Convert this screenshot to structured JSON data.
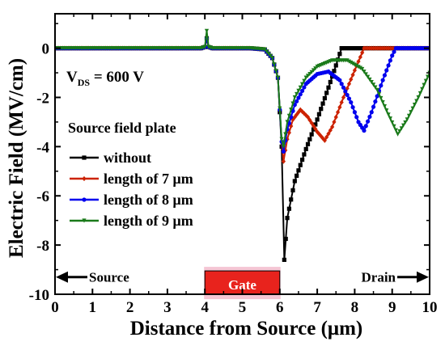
{
  "chart_data": {
    "type": "line",
    "xlabel": "Distance from Source (μm)",
    "ylabel": "Electric Field (MV/cm)",
    "xlim": [
      0,
      10
    ],
    "ylim": [
      -10,
      1.4
    ],
    "x_ticks": [
      0,
      1,
      2,
      3,
      4,
      5,
      6,
      7,
      8,
      9,
      10
    ],
    "y_ticks": [
      0,
      -2,
      -4,
      -6,
      -8,
      -10
    ],
    "grid": false,
    "vds_label_main": "V",
    "vds_label_sub": "DS",
    "vds_label_rest": " = 600 V",
    "legend_title": "Source field plate",
    "legend_placement": "middle-left",
    "annotations": {
      "source": "Source",
      "drain": "Drain",
      "gate": "Gate",
      "gate_range": [
        4,
        6
      ]
    },
    "series": [
      {
        "name": "without",
        "color": "#000000",
        "marker": "square",
        "points": [
          [
            0,
            0
          ],
          [
            3.9,
            0
          ],
          [
            4.0,
            0.05
          ],
          [
            4.05,
            0.4
          ],
          [
            4.1,
            0.05
          ],
          [
            4.2,
            0
          ],
          [
            5.2,
            0
          ],
          [
            5.6,
            -0.05
          ],
          [
            5.8,
            -0.4
          ],
          [
            5.95,
            -1.2
          ],
          [
            6.05,
            -4
          ],
          [
            6.12,
            -8.6
          ],
          [
            6.2,
            -6.9
          ],
          [
            6.4,
            -5.4
          ],
          [
            6.7,
            -4.1
          ],
          [
            7.0,
            -2.9
          ],
          [
            7.3,
            -1.6
          ],
          [
            7.5,
            -0.7
          ],
          [
            7.65,
            0
          ],
          [
            10,
            0
          ]
        ]
      },
      {
        "name": "length of 7 μm",
        "color": "#cc2200",
        "marker": "diamond",
        "points": [
          [
            0,
            0
          ],
          [
            3.9,
            0
          ],
          [
            4.0,
            0.05
          ],
          [
            4.05,
            0.4
          ],
          [
            4.1,
            0.05
          ],
          [
            4.2,
            0
          ],
          [
            5.2,
            0
          ],
          [
            5.6,
            -0.05
          ],
          [
            5.8,
            -0.4
          ],
          [
            5.95,
            -1.2
          ],
          [
            6.05,
            -3.8
          ],
          [
            6.1,
            -4.6
          ],
          [
            6.2,
            -3.7
          ],
          [
            6.35,
            -2.9
          ],
          [
            6.55,
            -2.5
          ],
          [
            6.75,
            -2.8
          ],
          [
            7.0,
            -3.4
          ],
          [
            7.2,
            -3.75
          ],
          [
            7.4,
            -3.2
          ],
          [
            7.7,
            -2.0
          ],
          [
            8.0,
            -0.9
          ],
          [
            8.25,
            0
          ],
          [
            10,
            0
          ]
        ]
      },
      {
        "name": "length of 8 μm",
        "color": "#0000ee",
        "marker": "circle",
        "points": [
          [
            0,
            0
          ],
          [
            3.9,
            0
          ],
          [
            4.0,
            0.05
          ],
          [
            4.05,
            0.4
          ],
          [
            4.1,
            0.05
          ],
          [
            4.2,
            0
          ],
          [
            5.2,
            0
          ],
          [
            5.6,
            -0.05
          ],
          [
            5.8,
            -0.4
          ],
          [
            5.95,
            -1.2
          ],
          [
            6.05,
            -3.8
          ],
          [
            6.1,
            -4.2
          ],
          [
            6.2,
            -3.3
          ],
          [
            6.4,
            -2.3
          ],
          [
            6.7,
            -1.45
          ],
          [
            7.0,
            -1.05
          ],
          [
            7.3,
            -0.95
          ],
          [
            7.6,
            -1.3
          ],
          [
            7.9,
            -2.2
          ],
          [
            8.1,
            -3.0
          ],
          [
            8.25,
            -3.35
          ],
          [
            8.45,
            -2.6
          ],
          [
            8.75,
            -1.3
          ],
          [
            9.0,
            -0.3
          ],
          [
            9.1,
            0
          ],
          [
            10,
            0
          ]
        ]
      },
      {
        "name": "length of 9 μm",
        "color": "#1a7a1a",
        "marker": "triangle-down",
        "points": [
          [
            0,
            0
          ],
          [
            3.9,
            0
          ],
          [
            4.0,
            0.05
          ],
          [
            4.05,
            0.7
          ],
          [
            4.1,
            0.05
          ],
          [
            4.2,
            0
          ],
          [
            5.2,
            0
          ],
          [
            5.6,
            -0.05
          ],
          [
            5.8,
            -0.4
          ],
          [
            5.95,
            -1.2
          ],
          [
            6.05,
            -3.7
          ],
          [
            6.1,
            -4.0
          ],
          [
            6.2,
            -3.0
          ],
          [
            6.4,
            -2.0
          ],
          [
            6.7,
            -1.2
          ],
          [
            7.0,
            -0.75
          ],
          [
            7.4,
            -0.5
          ],
          [
            7.8,
            -0.5
          ],
          [
            8.2,
            -0.85
          ],
          [
            8.6,
            -1.7
          ],
          [
            8.9,
            -2.7
          ],
          [
            9.15,
            -3.5
          ],
          [
            9.4,
            -2.9
          ],
          [
            9.7,
            -2.0
          ],
          [
            10,
            -1.0
          ]
        ]
      }
    ]
  }
}
